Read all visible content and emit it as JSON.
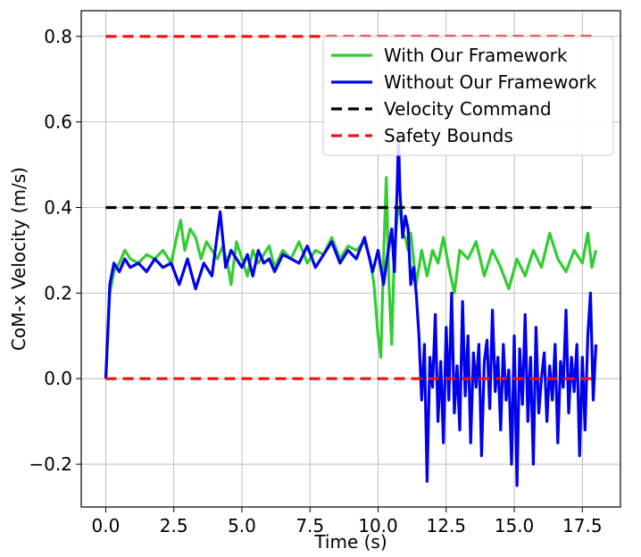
{
  "chart_data": {
    "type": "line",
    "title": "",
    "xlabel": "Time (s)",
    "ylabel": "CoM-x Velocity (m/s)",
    "xlim": [
      -0.9,
      18.9
    ],
    "ylim": [
      -0.3,
      0.86
    ],
    "x_ticks": [
      0.0,
      2.5,
      5.0,
      7.5,
      10.0,
      12.5,
      15.0,
      17.5
    ],
    "x_tick_labels": [
      "0.0",
      "2.5",
      "5.0",
      "7.5",
      "10.0",
      "12.5",
      "15.0",
      "17.5"
    ],
    "y_ticks": [
      -0.2,
      0.0,
      0.2,
      0.4,
      0.6,
      0.8
    ],
    "y_tick_labels": [
      "−0.2",
      "0.0",
      "0.2",
      "0.4",
      "0.6",
      "0.8"
    ],
    "grid": true,
    "legend_position": "top-right",
    "series": [
      {
        "name": "With Our Framework",
        "color": "#33cc33",
        "style": "solid",
        "x": [
          0.0,
          0.15,
          0.3,
          0.5,
          0.7,
          0.9,
          1.2,
          1.5,
          1.8,
          2.1,
          2.4,
          2.6,
          2.75,
          2.9,
          3.1,
          3.3,
          3.5,
          3.7,
          3.9,
          4.1,
          4.3,
          4.5,
          4.6,
          4.8,
          5.0,
          5.2,
          5.4,
          5.6,
          5.8,
          6.0,
          6.2,
          6.5,
          6.8,
          7.1,
          7.4,
          7.7,
          8.0,
          8.3,
          8.6,
          8.9,
          9.2,
          9.5,
          9.7,
          9.85,
          10.0,
          10.1,
          10.2,
          10.3,
          10.4,
          10.5,
          10.6,
          10.7,
          10.8,
          10.9,
          11.0,
          11.1,
          11.2,
          11.3,
          11.4,
          11.6,
          11.8,
          12.0,
          12.2,
          12.4,
          12.6,
          12.8,
          13.0,
          13.3,
          13.6,
          13.9,
          14.2,
          14.5,
          14.8,
          15.1,
          15.4,
          15.7,
          16.0,
          16.3,
          16.6,
          16.9,
          17.2,
          17.5,
          17.7,
          17.85,
          18.0
        ],
        "y": [
          0.0,
          0.2,
          0.25,
          0.27,
          0.3,
          0.28,
          0.27,
          0.29,
          0.28,
          0.3,
          0.27,
          0.33,
          0.37,
          0.3,
          0.35,
          0.33,
          0.28,
          0.32,
          0.3,
          0.28,
          0.31,
          0.26,
          0.22,
          0.32,
          0.28,
          0.24,
          0.3,
          0.27,
          0.29,
          0.31,
          0.26,
          0.3,
          0.28,
          0.32,
          0.27,
          0.3,
          0.29,
          0.33,
          0.28,
          0.31,
          0.3,
          0.32,
          0.28,
          0.22,
          0.1,
          0.05,
          0.28,
          0.47,
          0.22,
          0.08,
          0.3,
          0.38,
          0.4,
          0.34,
          0.33,
          0.3,
          0.34,
          0.28,
          0.22,
          0.3,
          0.24,
          0.3,
          0.27,
          0.33,
          0.26,
          0.2,
          0.3,
          0.28,
          0.32,
          0.24,
          0.3,
          0.26,
          0.21,
          0.28,
          0.24,
          0.3,
          0.26,
          0.34,
          0.28,
          0.25,
          0.3,
          0.27,
          0.34,
          0.26,
          0.3
        ]
      },
      {
        "name": "Without Our Framework",
        "color": "#0000ee",
        "style": "solid",
        "x": [
          0.0,
          0.15,
          0.3,
          0.5,
          0.7,
          0.9,
          1.2,
          1.5,
          1.8,
          2.1,
          2.4,
          2.7,
          3.0,
          3.3,
          3.6,
          3.9,
          4.2,
          4.4,
          4.6,
          4.8,
          5.0,
          5.2,
          5.4,
          5.6,
          5.8,
          6.0,
          6.2,
          6.5,
          6.8,
          7.1,
          7.4,
          7.7,
          8.0,
          8.3,
          8.6,
          8.9,
          9.2,
          9.5,
          9.8,
          10.0,
          10.2,
          10.35,
          10.5,
          10.6,
          10.7,
          10.75,
          10.8,
          10.9,
          11.0,
          11.1,
          11.2,
          11.3,
          11.4,
          11.5,
          11.6,
          11.7,
          11.8,
          11.9,
          12.0,
          12.1,
          12.2,
          12.3,
          12.4,
          12.5,
          12.6,
          12.7,
          12.8,
          12.9,
          13.0,
          13.1,
          13.2,
          13.3,
          13.4,
          13.5,
          13.6,
          13.7,
          13.8,
          13.9,
          14.0,
          14.1,
          14.2,
          14.3,
          14.4,
          14.5,
          14.6,
          14.7,
          14.8,
          14.9,
          15.0,
          15.1,
          15.2,
          15.3,
          15.4,
          15.5,
          15.6,
          15.7,
          15.8,
          15.9,
          16.0,
          16.1,
          16.2,
          16.3,
          16.4,
          16.5,
          16.6,
          16.7,
          16.8,
          16.9,
          17.0,
          17.1,
          17.2,
          17.3,
          17.4,
          17.5,
          17.6,
          17.7,
          17.8,
          17.9,
          18.0
        ],
        "y": [
          0.0,
          0.22,
          0.27,
          0.25,
          0.28,
          0.26,
          0.27,
          0.25,
          0.28,
          0.26,
          0.27,
          0.22,
          0.28,
          0.21,
          0.27,
          0.24,
          0.39,
          0.26,
          0.3,
          0.28,
          0.26,
          0.29,
          0.24,
          0.3,
          0.27,
          0.28,
          0.25,
          0.29,
          0.28,
          0.27,
          0.31,
          0.26,
          0.29,
          0.32,
          0.27,
          0.3,
          0.28,
          0.33,
          0.25,
          0.3,
          0.22,
          0.29,
          0.35,
          0.25,
          0.45,
          0.57,
          0.44,
          0.33,
          0.38,
          0.35,
          0.22,
          0.26,
          0.2,
          0.1,
          -0.05,
          0.08,
          -0.24,
          0.05,
          -0.02,
          0.15,
          -0.1,
          0.04,
          -0.15,
          0.12,
          -0.05,
          0.2,
          -0.08,
          0.03,
          -0.12,
          0.18,
          -0.04,
          0.1,
          -0.15,
          0.06,
          -0.02,
          0.08,
          -0.18,
          0.04,
          0.09,
          -0.07,
          0.16,
          -0.03,
          0.05,
          -0.12,
          0.08,
          -0.05,
          0.02,
          -0.2,
          0.1,
          -0.25,
          0.07,
          -0.06,
          0.15,
          -0.1,
          0.05,
          -0.2,
          0.12,
          -0.08,
          0.0,
          0.06,
          -0.1,
          0.03,
          -0.05,
          0.08,
          -0.15,
          0.04,
          -0.02,
          0.16,
          -0.08,
          0.05,
          -0.03,
          0.08,
          -0.18,
          0.05,
          -0.12,
          0.1,
          0.2,
          -0.05,
          0.08
        ]
      },
      {
        "name": "Velocity Command",
        "color": "#000000",
        "style": "dashed",
        "x": [
          0.0,
          18.0
        ],
        "y": [
          0.4,
          0.4
        ]
      },
      {
        "name": "Safety Bounds",
        "color": "#ee1111",
        "style": "dashed",
        "x": [
          0.0,
          18.0
        ],
        "y": [
          0.8,
          0.8
        ],
        "lower": [
          0.0,
          0.0
        ]
      }
    ]
  }
}
